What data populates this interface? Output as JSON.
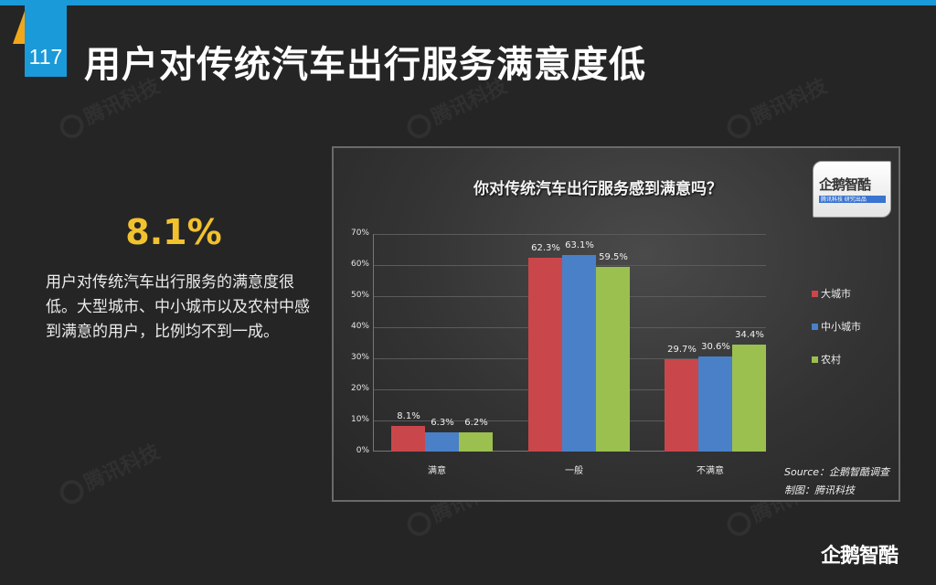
{
  "slide": {
    "page_number": "117",
    "title": "用户对传统汽车出行服务满意度低",
    "accent_color": "#1a9ad8",
    "triangle_color": "#f2a71b"
  },
  "summary": {
    "stat": "8.1%",
    "stat_color": "#f2c12e",
    "description": "用户对传统汽车出行服务的满意度很低。大型城市、中小城市以及农村中感到满意的用户，比例均不到一成。"
  },
  "watermark": {
    "text": "腾讯科技"
  },
  "chart_badge": {
    "name": "企鹅智酷",
    "subtitle": "腾讯科技 研究出品"
  },
  "chart_data": {
    "type": "bar",
    "title": "你对传统汽车出行服务感到满意吗？",
    "categories": [
      "满意",
      "一般",
      "不满意"
    ],
    "series": [
      {
        "name": "大城市",
        "color": "#c9474b",
        "values": [
          8.1,
          62.3,
          29.7
        ]
      },
      {
        "name": "中小城市",
        "color": "#4a80c8",
        "values": [
          6.3,
          63.1,
          30.6
        ]
      },
      {
        "name": "农村",
        "color": "#9bc04f",
        "values": [
          6.2,
          59.5,
          34.4
        ]
      }
    ],
    "value_suffix": "%",
    "yticks": [
      "0%",
      "10%",
      "20%",
      "30%",
      "40%",
      "50%",
      "60%",
      "70%"
    ],
    "ylim": [
      0,
      70
    ],
    "xlabel": "",
    "ylabel": "",
    "grid": true,
    "legend_position": "right",
    "source": "Source：企鹅智酷调查",
    "credit": "制图：腾讯科技"
  },
  "footer": {
    "logo_text": "企鹅智酷"
  }
}
